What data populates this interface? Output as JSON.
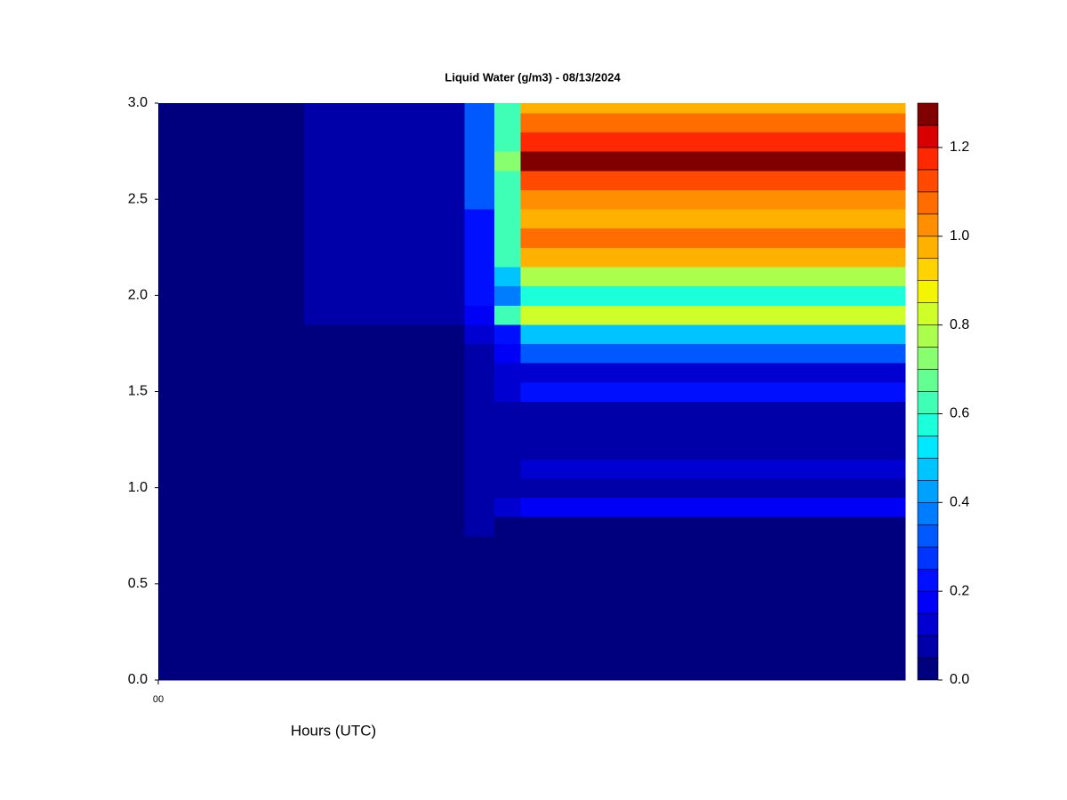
{
  "chart_data": {
    "type": "contour",
    "title": "Liquid Water (g/m3) - 08/13/2024",
    "x_label": "Hours (UTC)",
    "x": [
      0,
      3.9,
      4.3,
      4.7,
      5.0,
      10
    ],
    "xlim": [
      0,
      10
    ],
    "xticks": [
      {
        "value": 0,
        "label": "00"
      }
    ],
    "y": [
      0,
      0.1,
      0.2,
      0.3,
      0.4,
      0.5,
      0.6,
      0.7,
      0.8,
      0.9,
      1.0,
      1.1,
      1.2,
      1.3,
      1.4,
      1.5,
      1.6,
      1.7,
      1.8,
      1.9,
      2.0,
      2.1,
      2.2,
      2.3,
      2.4,
      2.5,
      2.6,
      2.7,
      2.8,
      2.9,
      3.0
    ],
    "ylim": [
      0,
      3
    ],
    "yticks": [
      {
        "value": 0,
        "label": "0.0"
      },
      0.5,
      {
        "value": 1,
        "label": "1.0"
      },
      1.5,
      {
        "value": 2,
        "label": "2.0"
      },
      2.5,
      {
        "value": 3,
        "label": "3.0"
      }
    ],
    "z": [
      [
        0,
        0,
        0,
        0,
        0,
        0
      ],
      [
        0,
        0,
        0,
        0,
        0,
        0
      ],
      [
        0,
        0,
        0,
        0,
        0,
        0
      ],
      [
        0,
        0,
        0,
        0,
        0,
        0
      ],
      [
        0,
        0,
        0,
        0,
        0,
        0
      ],
      [
        0,
        0,
        0,
        0,
        0,
        0
      ],
      [
        0,
        0,
        0,
        0,
        0,
        0
      ],
      [
        0,
        0,
        0,
        0,
        0,
        0
      ],
      [
        0,
        0,
        0.05,
        0,
        0,
        0
      ],
      [
        0,
        0,
        0.05,
        0.1,
        0.15,
        0.15
      ],
      [
        0,
        0,
        0.05,
        0.05,
        0.05,
        0.05
      ],
      [
        0,
        0,
        0.05,
        0.05,
        0.1,
        0.1
      ],
      [
        0,
        0,
        0.05,
        0.05,
        0.07,
        0.07
      ],
      [
        0,
        0,
        0.05,
        0.05,
        0.07,
        0.07
      ],
      [
        0,
        0,
        0.05,
        0.05,
        0.07,
        0.07
      ],
      [
        0,
        0,
        0.05,
        0.1,
        0.2,
        0.2
      ],
      [
        0,
        0,
        0.05,
        0.1,
        0.12,
        0.12
      ],
      [
        0,
        0,
        0.05,
        0.15,
        0.3,
        0.3
      ],
      [
        0,
        0,
        0.1,
        0.2,
        0.45,
        0.45
      ],
      [
        0,
        0.05,
        0.15,
        0.6,
        0.8,
        0.8
      ],
      [
        0,
        0.05,
        0.2,
        0.35,
        0.55,
        0.55
      ],
      [
        0,
        0.05,
        0.2,
        0.45,
        0.75,
        0.75
      ],
      [
        0,
        0.05,
        0.2,
        0.6,
        0.95,
        0.95
      ],
      [
        0,
        0.05,
        0.2,
        0.6,
        1.05,
        1.05
      ],
      [
        0,
        0.05,
        0.2,
        0.6,
        0.95,
        0.95
      ],
      [
        0,
        0.05,
        0.3,
        0.6,
        1.0,
        1.0
      ],
      [
        0,
        0.05,
        0.3,
        0.6,
        1.1,
        1.1
      ],
      [
        0,
        0.05,
        0.3,
        0.7,
        1.25,
        1.25
      ],
      [
        0,
        0.05,
        0.3,
        0.6,
        1.15,
        1.15
      ],
      [
        0,
        0.05,
        0.3,
        0.6,
        1.05,
        1.05
      ],
      [
        0,
        0.05,
        0.3,
        0.6,
        0.95,
        0.95
      ]
    ],
    "levels": [
      0,
      0.05,
      0.1,
      0.15,
      0.2,
      0.25,
      0.3,
      0.35,
      0.4,
      0.45,
      0.5,
      0.55,
      0.6,
      0.65,
      0.7,
      0.75,
      0.8,
      0.85,
      0.9,
      0.95,
      1.0,
      1.05,
      1.1,
      1.15,
      1.2,
      1.25,
      1.3
    ],
    "colors": [
      "#00007f",
      "#0000a8",
      "#0000d0",
      "#0000f6",
      "#0010ff",
      "#0034ff",
      "#0058ff",
      "#007cff",
      "#00a0ff",
      "#00c4ff",
      "#00e8ff",
      "#1cffdb",
      "#3fffb7",
      "#63ff93",
      "#87ff6f",
      "#abff4c",
      "#cfff28",
      "#f3f504",
      "#ffd300",
      "#ffb100",
      "#ff8f00",
      "#ff6d00",
      "#ff4a00",
      "#ff2800",
      "#d80000",
      "#800000"
    ],
    "colorbar_ticks": [
      {
        "value": 0,
        "label": "0.0"
      },
      0.2,
      0.4,
      0.6,
      0.8,
      {
        "value": 1,
        "label": "1.0"
      },
      1.2
    ]
  }
}
